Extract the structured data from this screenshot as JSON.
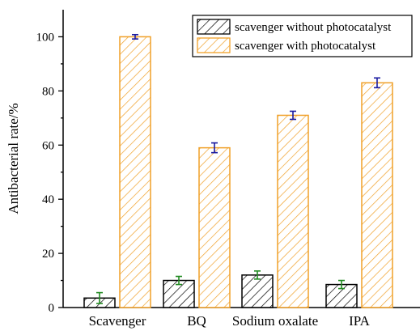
{
  "chart_data": {
    "type": "bar",
    "categories": [
      "Scavenger",
      "BQ",
      "Sodium oxalate",
      "IPA"
    ],
    "series": [
      {
        "name": "scavenger without photocatalyst",
        "values": [
          3.5,
          10,
          12,
          8.5
        ],
        "errors": [
          2,
          1.5,
          1.5,
          1.5
        ],
        "color": "#000000",
        "error_color": "#228b22"
      },
      {
        "name": "scavenger with photocatalyst",
        "values": [
          100,
          59,
          71,
          83
        ],
        "errors": [
          0.8,
          1.8,
          1.5,
          1.8
        ],
        "color": "#f0a028",
        "error_color": "#1a1aa0"
      }
    ],
    "title": "",
    "xlabel": "",
    "ylabel": "Antibacterial rate/%",
    "ylim": [
      0,
      110
    ],
    "yticks": [
      0,
      20,
      40,
      60,
      80,
      100
    ],
    "grid": false,
    "legend_position": "top-right"
  }
}
